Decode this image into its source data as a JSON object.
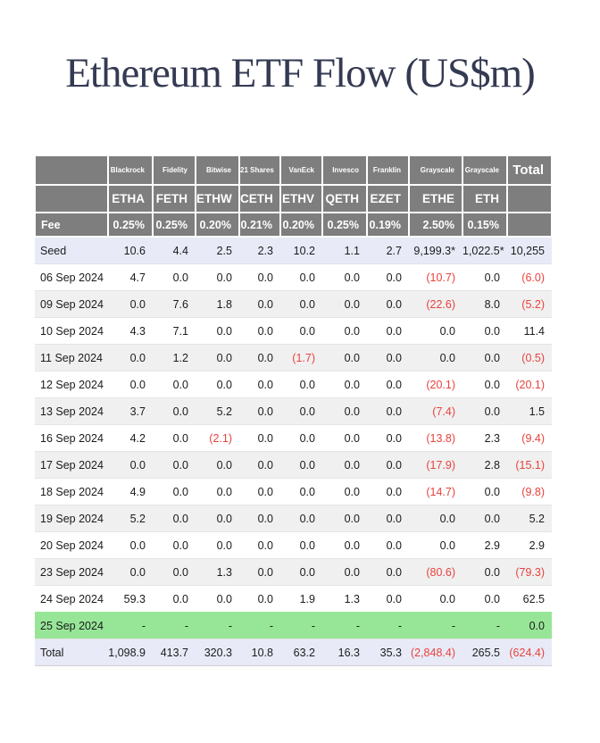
{
  "title": "Ethereum ETF Flow (US$m)",
  "colors": {
    "title_text": "#343a52",
    "header_bg": "#7e7e7e",
    "header_text": "#ffffff",
    "seed_total_row_bg": "#e8ebf7",
    "alt_row_bg": "#f0f0f0",
    "highlight_row_bg": "#97e697",
    "negative_text": "#e9423d",
    "body_text": "#1b1b1d"
  },
  "chart_data": {
    "type": "table",
    "title": "Ethereum ETF Flow (US$m)",
    "header": {
      "providers": [
        "",
        "Blackrock",
        "Fidelity",
        "Bitwise",
        "21 Shares",
        "VanEck",
        "Invesco",
        "Franklin",
        "Grayscale",
        "Grayscale",
        "Total"
      ],
      "tickers": [
        "",
        "ETHA",
        "FETH",
        "ETHW",
        "CETH",
        "ETHV",
        "QETH",
        "EZET",
        "ETHE",
        "ETH",
        ""
      ],
      "fees": [
        "Fee",
        "0.25%",
        "0.25%",
        "0.20%",
        "0.21%",
        "0.20%",
        "0.25%",
        "0.19%",
        "2.50%",
        "0.15%",
        ""
      ]
    },
    "rows": [
      {
        "label": "Seed",
        "tone": "seed",
        "values": [
          "10.6",
          "4.4",
          "2.5",
          "2.3",
          "10.2",
          "1.1",
          "2.7",
          "9,199.3*",
          "1,022.5*",
          "10,255"
        ]
      },
      {
        "label": "06 Sep 2024",
        "tone": "plain",
        "values": [
          "4.7",
          "0.0",
          "0.0",
          "0.0",
          "0.0",
          "0.0",
          "0.0",
          "(10.7)",
          "0.0",
          "(6.0)"
        ]
      },
      {
        "label": "09 Sep 2024",
        "tone": "alt",
        "values": [
          "0.0",
          "7.6",
          "1.8",
          "0.0",
          "0.0",
          "0.0",
          "0.0",
          "(22.6)",
          "8.0",
          "(5.2)"
        ]
      },
      {
        "label": "10 Sep 2024",
        "tone": "plain",
        "values": [
          "4.3",
          "7.1",
          "0.0",
          "0.0",
          "0.0",
          "0.0",
          "0.0",
          "0.0",
          "0.0",
          "11.4"
        ]
      },
      {
        "label": "11 Sep 2024",
        "tone": "alt",
        "values": [
          "0.0",
          "1.2",
          "0.0",
          "0.0",
          "(1.7)",
          "0.0",
          "0.0",
          "0.0",
          "0.0",
          "(0.5)"
        ]
      },
      {
        "label": "12 Sep 2024",
        "tone": "plain",
        "values": [
          "0.0",
          "0.0",
          "0.0",
          "0.0",
          "0.0",
          "0.0",
          "0.0",
          "(20.1)",
          "0.0",
          "(20.1)"
        ]
      },
      {
        "label": "13 Sep 2024",
        "tone": "alt",
        "values": [
          "3.7",
          "0.0",
          "5.2",
          "0.0",
          "0.0",
          "0.0",
          "0.0",
          "(7.4)",
          "0.0",
          "1.5"
        ]
      },
      {
        "label": "16 Sep 2024",
        "tone": "plain",
        "values": [
          "4.2",
          "0.0",
          "(2.1)",
          "0.0",
          "0.0",
          "0.0",
          "0.0",
          "(13.8)",
          "2.3",
          "(9.4)"
        ]
      },
      {
        "label": "17 Sep 2024",
        "tone": "alt",
        "values": [
          "0.0",
          "0.0",
          "0.0",
          "0.0",
          "0.0",
          "0.0",
          "0.0",
          "(17.9)",
          "2.8",
          "(15.1)"
        ]
      },
      {
        "label": "18 Sep 2024",
        "tone": "plain",
        "values": [
          "4.9",
          "0.0",
          "0.0",
          "0.0",
          "0.0",
          "0.0",
          "0.0",
          "(14.7)",
          "0.0",
          "(9.8)"
        ]
      },
      {
        "label": "19 Sep 2024",
        "tone": "alt",
        "values": [
          "5.2",
          "0.0",
          "0.0",
          "0.0",
          "0.0",
          "0.0",
          "0.0",
          "0.0",
          "0.0",
          "5.2"
        ]
      },
      {
        "label": "20 Sep 2024",
        "tone": "plain",
        "values": [
          "0.0",
          "0.0",
          "0.0",
          "0.0",
          "0.0",
          "0.0",
          "0.0",
          "0.0",
          "2.9",
          "2.9"
        ]
      },
      {
        "label": "23 Sep 2024",
        "tone": "alt",
        "values": [
          "0.0",
          "0.0",
          "1.3",
          "0.0",
          "0.0",
          "0.0",
          "0.0",
          "(80.6)",
          "0.0",
          "(79.3)"
        ]
      },
      {
        "label": "24 Sep 2024",
        "tone": "plain",
        "values": [
          "59.3",
          "0.0",
          "0.0",
          "0.0",
          "1.9",
          "1.3",
          "0.0",
          "0.0",
          "0.0",
          "62.5"
        ]
      },
      {
        "label": "25 Sep 2024",
        "tone": "highlight",
        "values": [
          "-",
          "-",
          "-",
          "-",
          "-",
          "-",
          "-",
          "-",
          "-",
          "0.0"
        ]
      },
      {
        "label": "Total",
        "tone": "total",
        "values": [
          "1,098.9",
          "413.7",
          "320.3",
          "10.8",
          "63.2",
          "16.3",
          "35.3",
          "(2,848.4)",
          "265.5",
          "(624.4)"
        ]
      }
    ]
  }
}
